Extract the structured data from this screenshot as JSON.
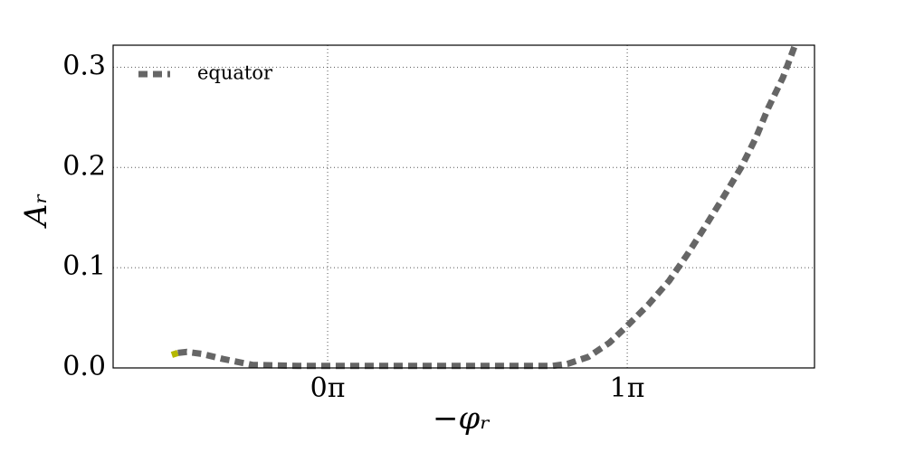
{
  "chart_data": {
    "type": "line",
    "xlabel": "−φᵣ",
    "ylabel": "Aᵣ",
    "xlim": [
      -0.716,
      1.625
    ],
    "ylim": [
      0,
      0.322
    ],
    "xticks": [
      {
        "value": 0,
        "label": "0π"
      },
      {
        "value": 1,
        "label": "1π"
      }
    ],
    "yticks": [
      {
        "value": 0,
        "label": "0.0"
      },
      0.1,
      0.2,
      0.3
    ],
    "grid": true,
    "legend": "upper left",
    "series": [
      {
        "name": "equator",
        "color": "#666666",
        "x": [
          -0.5,
          -0.47,
          -0.42,
          -0.35,
          -0.25,
          -0.1,
          0.2,
          0.5,
          0.75,
          0.8,
          0.87,
          0.94,
          1.0,
          1.07,
          1.14,
          1.2,
          1.26,
          1.32,
          1.38,
          1.43,
          1.47,
          1.52,
          1.56
        ],
        "values": [
          0.015,
          0.016,
          0.014,
          0.009,
          0.003,
          0.002,
          0.002,
          0.002,
          0.002,
          0.004,
          0.011,
          0.025,
          0.042,
          0.063,
          0.087,
          0.113,
          0.141,
          0.17,
          0.2,
          0.23,
          0.259,
          0.29,
          0.322
        ]
      },
      {
        "color": "#b5b800",
        "x": [
          -0.52,
          -0.5
        ],
        "values": [
          0.013,
          0.015
        ]
      }
    ]
  }
}
